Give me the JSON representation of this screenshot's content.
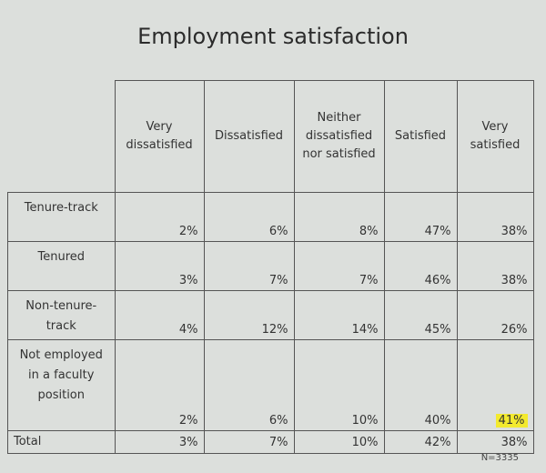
{
  "title": "Employment satisfaction",
  "table": {
    "columns": [
      "Very dissatisfied",
      "Dissatisfied",
      "Neither dissatisfied nor satisfied",
      "Satisfied",
      "Very satisfied"
    ],
    "rows": [
      [
        "Tenure-track",
        "2%",
        "6%",
        "8%",
        "47%",
        "38%"
      ],
      [
        "Tenured",
        "3%",
        "7%",
        "7%",
        "46%",
        "38%"
      ],
      [
        "Non-tenure-track",
        "4%",
        "12%",
        "14%",
        "45%",
        "26%"
      ],
      [
        "Not employed in a faculty position",
        "2%",
        "6%",
        "10%",
        "40%",
        "41%"
      ],
      [
        "Total",
        "3%",
        "7%",
        "10%",
        "42%",
        "38%"
      ]
    ]
  },
  "note": "N=3335"
}
